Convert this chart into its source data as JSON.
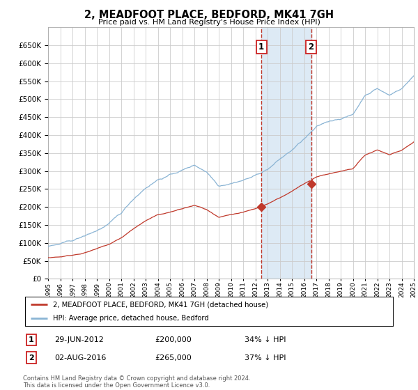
{
  "title": "2, MEADFOOT PLACE, BEDFORD, MK41 7GH",
  "subtitle": "Price paid vs. HM Land Registry's House Price Index (HPI)",
  "legend_line1": "2, MEADFOOT PLACE, BEDFORD, MK41 7GH (detached house)",
  "legend_line2": "HPI: Average price, detached house, Bedford",
  "footnote": "Contains HM Land Registry data © Crown copyright and database right 2024.\nThis data is licensed under the Open Government Licence v3.0.",
  "sale1_date": "29-JUN-2012",
  "sale1_price": "£200,000",
  "sale1_pct": "34% ↓ HPI",
  "sale2_date": "02-AUG-2016",
  "sale2_price": "£265,000",
  "sale2_pct": "37% ↓ HPI",
  "sale1_year": 2012.5,
  "sale2_year": 2016.58,
  "hpi_color": "#8ab4d4",
  "price_color": "#c0392b",
  "shade_color": "#ddeaf5",
  "grid_color": "#cccccc",
  "bg_color": "#ffffff"
}
